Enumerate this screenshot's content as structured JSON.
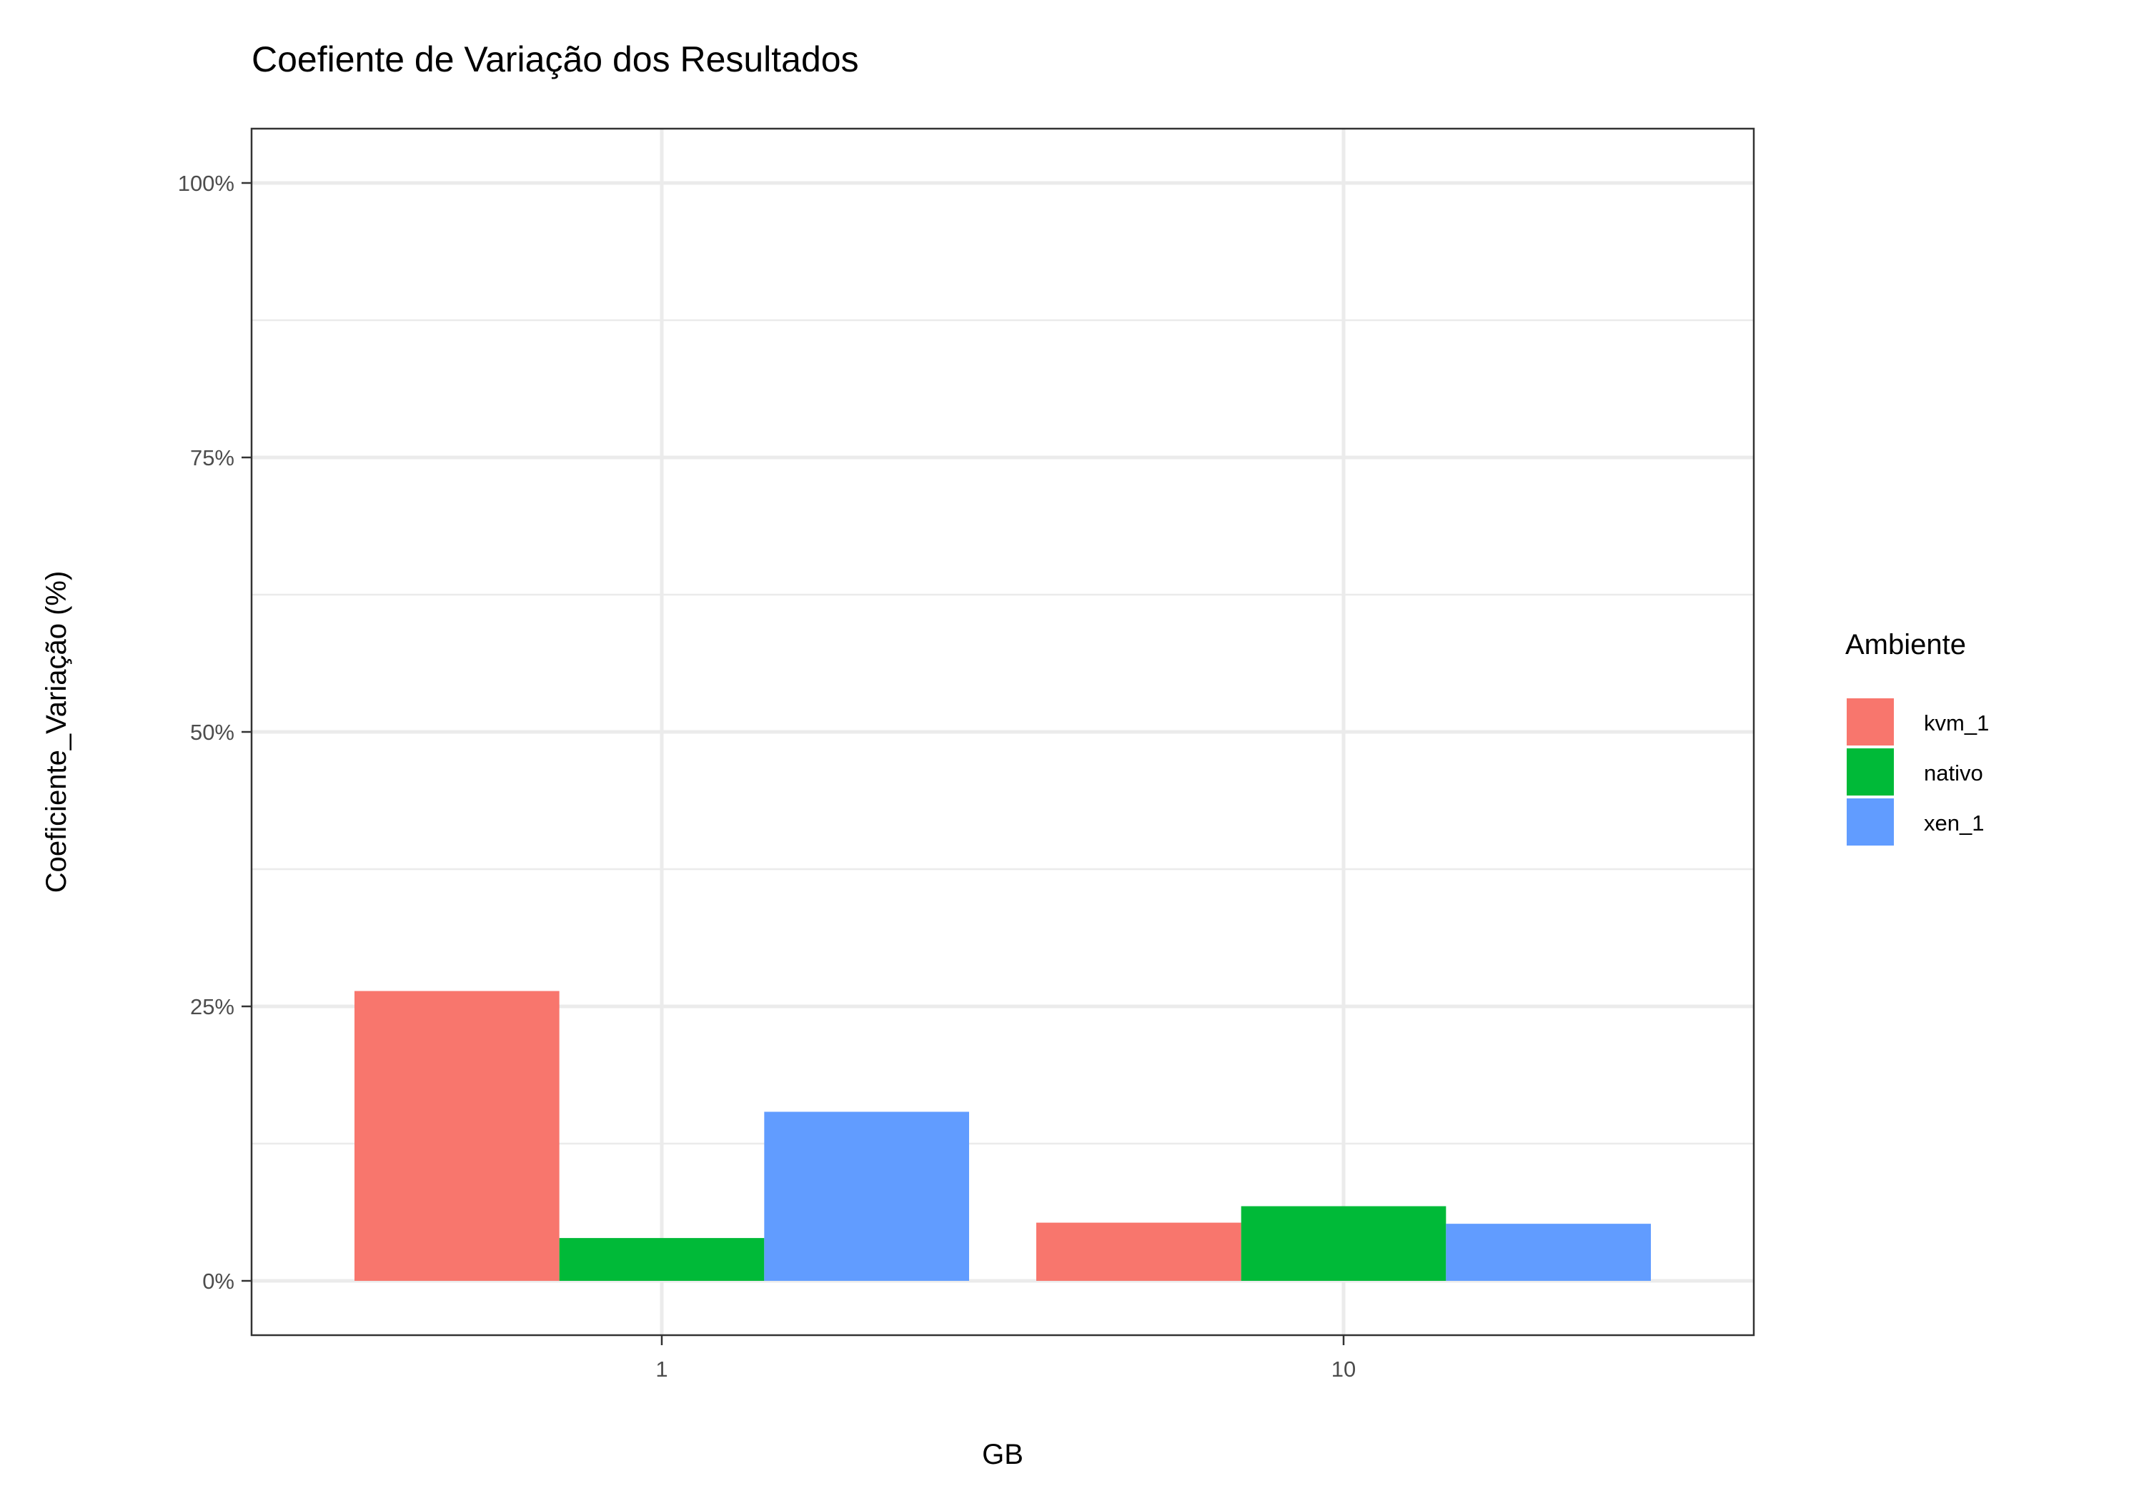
{
  "chart_data": {
    "type": "bar",
    "title": "Coefiente de Variação dos Resultados",
    "xlabel": "GB",
    "ylabel": "Coeficiente_Variação (%)",
    "categories": [
      "1",
      "10"
    ],
    "y_ticks": [
      "0%",
      "25%",
      "50%",
      "75%",
      "100%"
    ],
    "ylim": [
      0,
      100
    ],
    "grid": true,
    "legend": {
      "title": "Ambiente",
      "position": "right"
    },
    "series": [
      {
        "name": "kvm_1",
        "color": "#F8766D",
        "values": [
          26.4,
          5.3
        ]
      },
      {
        "name": "nativo",
        "color": "#00BA38",
        "values": [
          3.9,
          6.8
        ]
      },
      {
        "name": "xen_1",
        "color": "#619CFF",
        "values": [
          15.4,
          5.2
        ]
      }
    ]
  }
}
